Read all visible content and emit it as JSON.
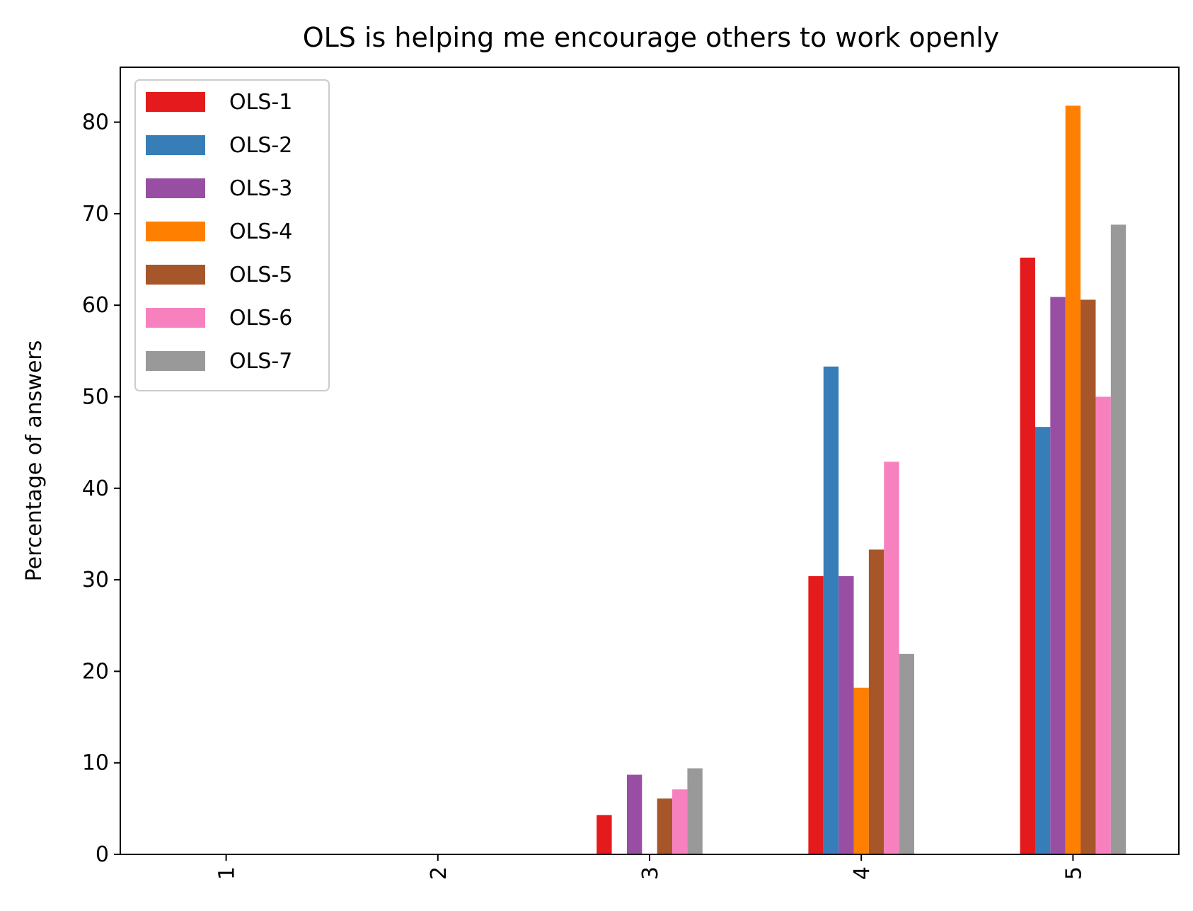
{
  "chart_data": {
    "type": "bar",
    "title": "OLS is helping me encourage others to work openly",
    "xlabel": "",
    "ylabel": "Percentage of answers",
    "categories": [
      "1",
      "2",
      "3",
      "4",
      "5"
    ],
    "ylim": [
      0,
      86
    ],
    "yticks": [
      0,
      10,
      20,
      30,
      40,
      50,
      60,
      70,
      80
    ],
    "x_tick_rotation": "vertical",
    "legend_position": "top-left",
    "series": [
      {
        "name": "OLS-1",
        "color": "#e41a1c",
        "values": [
          0,
          0,
          4.3,
          30.4,
          65.2
        ]
      },
      {
        "name": "OLS-2",
        "color": "#377eb8",
        "values": [
          0,
          0,
          0,
          53.3,
          46.7
        ]
      },
      {
        "name": "OLS-3",
        "color": "#984ea3",
        "values": [
          0,
          0,
          8.7,
          30.4,
          60.9
        ]
      },
      {
        "name": "OLS-4",
        "color": "#ff7f00",
        "values": [
          0,
          0,
          0,
          18.2,
          81.8
        ]
      },
      {
        "name": "OLS-5",
        "color": "#a65628",
        "values": [
          0,
          0,
          6.1,
          33.3,
          60.6
        ]
      },
      {
        "name": "OLS-6",
        "color": "#f781bf",
        "values": [
          0,
          0,
          7.1,
          42.9,
          50.0
        ]
      },
      {
        "name": "OLS-7",
        "color": "#999999",
        "values": [
          0,
          0,
          9.4,
          21.9,
          68.8
        ]
      }
    ]
  }
}
